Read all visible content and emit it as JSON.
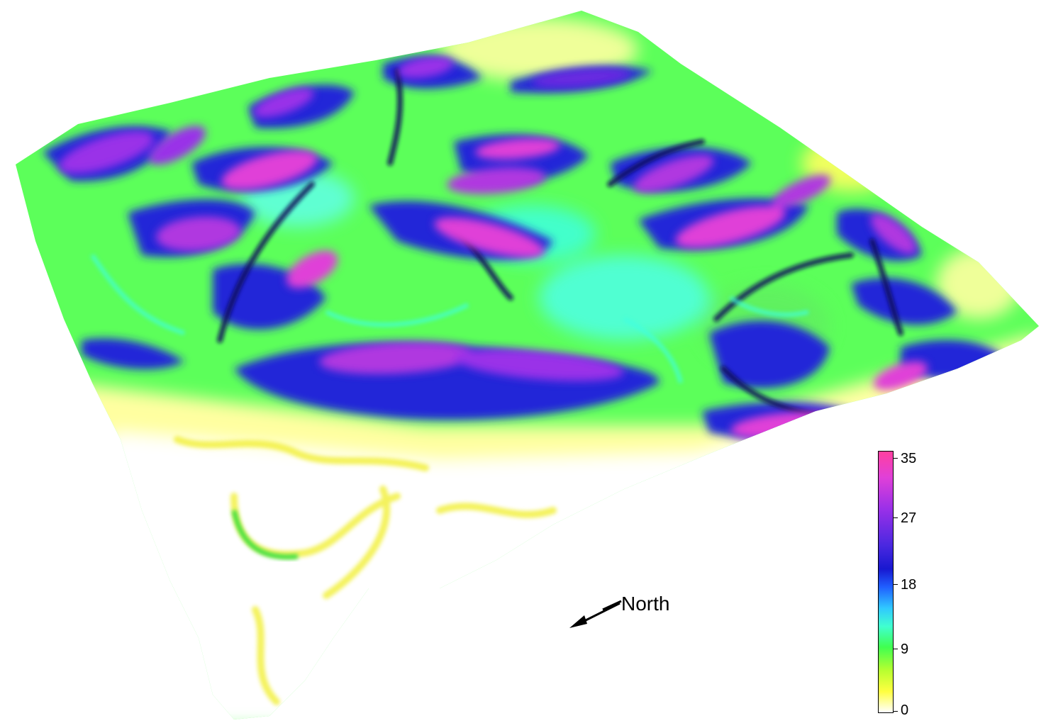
{
  "colorbar": {
    "ticks": [
      "35",
      "27",
      "18",
      "9",
      "0"
    ],
    "min": 0,
    "max": 35,
    "colors": [
      "#ffffff",
      "#ffff40",
      "#40ff50",
      "#40ffd0",
      "#2060ff",
      "#1818d0",
      "#9a30e8",
      "#ff40a0"
    ]
  },
  "compass": {
    "label": "North"
  }
}
